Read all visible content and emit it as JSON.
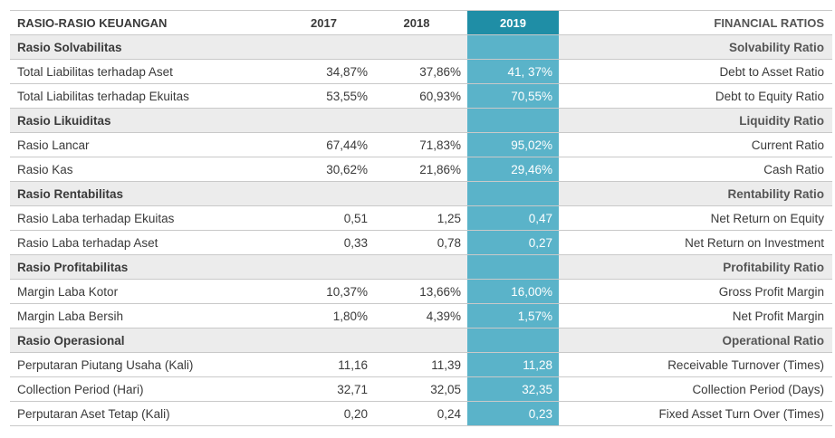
{
  "header": {
    "label": "RASIO-RASIO KEUANGAN",
    "y2017": "2017",
    "y2018": "2018",
    "y2019": "2019",
    "en": "FINANCIAL RATIOS"
  },
  "rows": [
    {
      "type": "section",
      "label": "Rasio Solvabilitas",
      "en": "Solvability Ratio"
    },
    {
      "type": "data",
      "label": "Total Liabilitas terhadap Aset",
      "v2017": "34,87%",
      "v2018": "37,86%",
      "v2019": "41, 37%",
      "en": "Debt to Asset Ratio"
    },
    {
      "type": "data",
      "label": "Total Liabilitas terhadap Ekuitas",
      "v2017": "53,55%",
      "v2018": "60,93%",
      "v2019": "70,55%",
      "en": "Debt to Equity Ratio"
    },
    {
      "type": "section",
      "label": "Rasio Likuiditas",
      "en": "Liquidity Ratio"
    },
    {
      "type": "data",
      "label": "Rasio Lancar",
      "v2017": "67,44%",
      "v2018": "71,83%",
      "v2019": "95,02%",
      "en": "Current Ratio"
    },
    {
      "type": "data",
      "label": "Rasio Kas",
      "v2017": "30,62%",
      "v2018": "21,86%",
      "v2019": "29,46%",
      "en": "Cash Ratio"
    },
    {
      "type": "section",
      "label": "Rasio Rentabilitas",
      "en": "Rentability Ratio"
    },
    {
      "type": "data",
      "label": "Rasio Laba terhadap Ekuitas",
      "v2017": "0,51",
      "v2018": "1,25",
      "v2019": "0,47",
      "en": "Net Return on Equity"
    },
    {
      "type": "data",
      "label": "Rasio Laba terhadap Aset",
      "v2017": "0,33",
      "v2018": "0,78",
      "v2019": "0,27",
      "en": "Net Return on Investment"
    },
    {
      "type": "section",
      "label": "Rasio Profitabilitas",
      "en": "Profitability Ratio"
    },
    {
      "type": "data",
      "label": "Margin Laba Kotor",
      "v2017": "10,37%",
      "v2018": "13,66%",
      "v2019": "16,00%",
      "en": "Gross Profit Margin"
    },
    {
      "type": "data",
      "label": "Margin Laba Bersih",
      "v2017": "1,80%",
      "v2018": "4,39%",
      "v2019": "1,57%",
      "en": "Net Profit Margin"
    },
    {
      "type": "section",
      "label": "Rasio Operasional",
      "en": "Operational Ratio"
    },
    {
      "type": "data",
      "label": "Perputaran Piutang Usaha (Kali)",
      "v2017": "11,16",
      "v2018": "11,39",
      "v2019": "11,28",
      "en": "Receivable Turnover (Times)"
    },
    {
      "type": "data",
      "label": "Collection Period (Hari)",
      "v2017": "32,71",
      "v2018": "32,05",
      "v2019": "32,35",
      "en": "Collection Period (Days)"
    },
    {
      "type": "data",
      "label": "Perputaran Aset Tetap (Kali)",
      "v2017": "0,20",
      "v2018": "0,24",
      "v2019": "0,23",
      "en": "Fixed Asset Turn Over (Times)"
    }
  ]
}
